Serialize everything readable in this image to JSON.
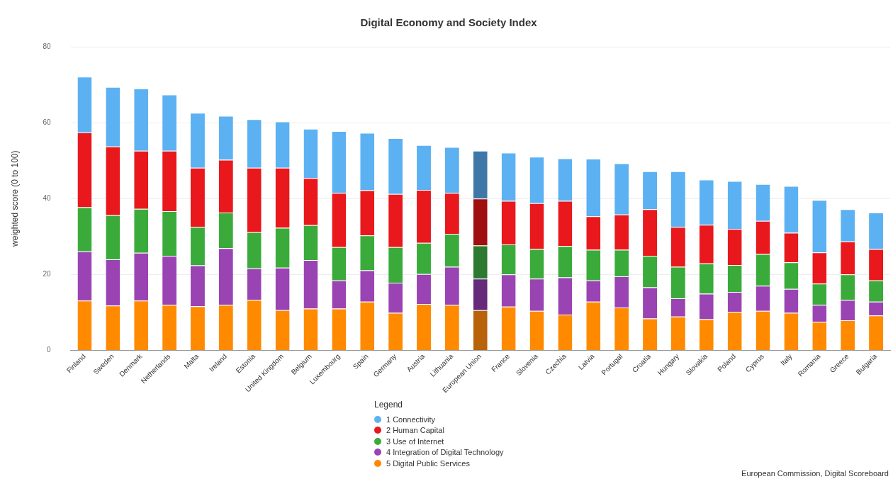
{
  "chart_data": {
    "type": "bar",
    "stacked": true,
    "title": "Digital Economy and Society Index",
    "ylabel": "weighted score (0 to 100)",
    "legend_title": "Legend",
    "legend": "bottom",
    "grid": "y",
    "categories": [
      "Finland",
      "Sweden",
      "Denmark",
      "Netherlands",
      "Malta",
      "Ireland",
      "Estonia",
      "United Kingdom",
      "Belgium",
      "Luxembourg",
      "Spain",
      "Germany",
      "Austria",
      "Lithuania",
      "European Union",
      "France",
      "Slovenia",
      "Czechia",
      "Latvia",
      "Portugal",
      "Croatia",
      "Hungary",
      "Slovakia",
      "Poland",
      "Cyprus",
      "Italy",
      "Romania",
      "Greece",
      "Bulgaria"
    ],
    "ylim": [
      0,
      80
    ],
    "yticks": [
      0,
      20,
      40,
      60,
      80
    ],
    "series": [
      {
        "name": "5 Digital Public Services",
        "color": "#ff8a00",
        "colors": [
          "#ff8a00",
          "#ff8a00",
          "#ff8a00",
          "#ff8a00",
          "#ff8a00",
          "#ff8a00",
          "#ff8a00",
          "#ff8a00",
          "#ff8a00",
          "#ff8a00",
          "#ff8a00",
          "#ff8a00",
          "#ff8a00",
          "#ff8a00",
          "#b8630a",
          "#ff8a00",
          "#ff8a00",
          "#ff8a00",
          "#ff8a00",
          "#ff8a00",
          "#ff8a00",
          "#ff8a00",
          "#ff8a00",
          "#ff8a00",
          "#ff8a00",
          "#ff8a00",
          "#ff8a00",
          "#ff8a00",
          "#ff8a00"
        ],
        "values": [
          13.1,
          11.8,
          13.1,
          12.0,
          11.6,
          12.0,
          13.3,
          10.6,
          11.0,
          11.0,
          12.8,
          9.9,
          12.2,
          12.0,
          10.6,
          11.5,
          10.4,
          9.4,
          12.8,
          11.3,
          8.4,
          8.9,
          8.2,
          10.1,
          10.4,
          9.9,
          7.5,
          7.9,
          9.2
        ]
      },
      {
        "name": "4 Integration of Digital Technology",
        "color": "#9a44b4",
        "colors": [
          "#9a44b4",
          "#9a44b4",
          "#9a44b4",
          "#9a44b4",
          "#9a44b4",
          "#9a44b4",
          "#9a44b4",
          "#9a44b4",
          "#9a44b4",
          "#9a44b4",
          "#9a44b4",
          "#9a44b4",
          "#9a44b4",
          "#9a44b4",
          "#652a7a",
          "#9a44b4",
          "#9a44b4",
          "#9a44b4",
          "#9a44b4",
          "#9a44b4",
          "#9a44b4",
          "#9a44b4",
          "#9a44b4",
          "#9a44b4",
          "#9a44b4",
          "#9a44b4",
          "#9a44b4",
          "#9a44b4",
          "#9a44b4"
        ],
        "values": [
          13.0,
          12.2,
          12.6,
          12.9,
          10.8,
          14.9,
          8.3,
          11.2,
          12.8,
          7.4,
          8.3,
          7.9,
          7.9,
          10.0,
          8.3,
          8.5,
          8.5,
          9.8,
          5.6,
          8.2,
          8.2,
          4.8,
          6.7,
          5.3,
          6.6,
          6.3,
          4.5,
          5.4,
          3.6
        ]
      },
      {
        "name": "3 Use of Internet",
        "color": "#3aab3a",
        "colors": [
          "#3aab3a",
          "#3aab3a",
          "#3aab3a",
          "#3aab3a",
          "#3aab3a",
          "#3aab3a",
          "#3aab3a",
          "#3aab3a",
          "#3aab3a",
          "#3aab3a",
          "#3aab3a",
          "#3aab3a",
          "#3aab3a",
          "#3aab3a",
          "#2b7a2f",
          "#3aab3a",
          "#3aab3a",
          "#3aab3a",
          "#3aab3a",
          "#3aab3a",
          "#3aab3a",
          "#3aab3a",
          "#3aab3a",
          "#3aab3a",
          "#3aab3a",
          "#3aab3a",
          "#3aab3a",
          "#3aab3a",
          "#3aab3a"
        ],
        "values": [
          11.6,
          11.6,
          11.6,
          11.8,
          10.1,
          9.4,
          9.5,
          10.5,
          9.2,
          8.8,
          9.2,
          9.4,
          8.2,
          8.7,
          8.7,
          7.9,
          7.8,
          8.3,
          8.1,
          7.0,
          8.3,
          8.3,
          8.0,
          7.1,
          8.4,
          7.0,
          5.6,
          6.7,
          5.6
        ]
      },
      {
        "name": "2 Human Capital",
        "color": "#e8181c",
        "colors": [
          "#e8181c",
          "#e8181c",
          "#e8181c",
          "#e8181c",
          "#e8181c",
          "#e8181c",
          "#e8181c",
          "#e8181c",
          "#e8181c",
          "#e8181c",
          "#e8181c",
          "#e8181c",
          "#e8181c",
          "#e8181c",
          "#a01010",
          "#e8181c",
          "#e8181c",
          "#e8181c",
          "#e8181c",
          "#e8181c",
          "#e8181c",
          "#e8181c",
          "#e8181c",
          "#e8181c",
          "#e8181c",
          "#e8181c",
          "#e8181c",
          "#e8181c",
          "#e8181c"
        ],
        "values": [
          19.7,
          18.1,
          15.3,
          15.9,
          15.6,
          13.9,
          17.0,
          15.8,
          12.4,
          14.3,
          11.9,
          14.0,
          14.0,
          10.8,
          12.4,
          11.5,
          12.1,
          11.9,
          8.8,
          9.3,
          12.3,
          10.5,
          10.2,
          9.5,
          8.7,
          7.8,
          8.2,
          8.7,
          8.3
        ]
      },
      {
        "name": "1 Connectivity",
        "color": "#5cb1f2",
        "colors": [
          "#5cb1f2",
          "#5cb1f2",
          "#5cb1f2",
          "#5cb1f2",
          "#5cb1f2",
          "#5cb1f2",
          "#5cb1f2",
          "#5cb1f2",
          "#5cb1f2",
          "#5cb1f2",
          "#5cb1f2",
          "#5cb1f2",
          "#5cb1f2",
          "#5cb1f2",
          "#3f78a8",
          "#5cb1f2",
          "#5cb1f2",
          "#5cb1f2",
          "#5cb1f2",
          "#5cb1f2",
          "#5cb1f2",
          "#5cb1f2",
          "#5cb1f2",
          "#5cb1f2",
          "#5cb1f2",
          "#5cb1f2",
          "#5cb1f2",
          "#5cb1f2",
          "#5cb1f2"
        ],
        "values": [
          14.7,
          15.7,
          16.4,
          14.8,
          14.5,
          11.6,
          12.8,
          12.2,
          13.0,
          16.3,
          15.1,
          14.7,
          11.8,
          12.1,
          12.6,
          12.7,
          12.2,
          11.2,
          15.2,
          13.5,
          10.0,
          14.7,
          11.9,
          12.6,
          9.7,
          12.3,
          13.8,
          8.5,
          9.6
        ]
      }
    ],
    "annotations": [
      "European Commission, Digital Scoreboard"
    ]
  }
}
